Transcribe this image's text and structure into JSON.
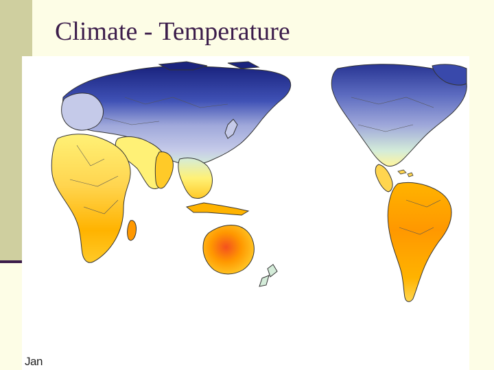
{
  "slide": {
    "title": "Climate - Temperature"
  },
  "map": {
    "month_label": "Jan",
    "colors": {
      "very_cold": "#1a237e",
      "cold": "#5c6bc0",
      "cool": "#9fa8da",
      "mild": "#c5cae9",
      "temperate": "#d4ecd9",
      "warm": "#fff176",
      "hot": "#ffca28",
      "very_hot": "#ff9800",
      "extreme": "#f4511e",
      "ocean": "#ffffff",
      "border": "#333333"
    }
  }
}
